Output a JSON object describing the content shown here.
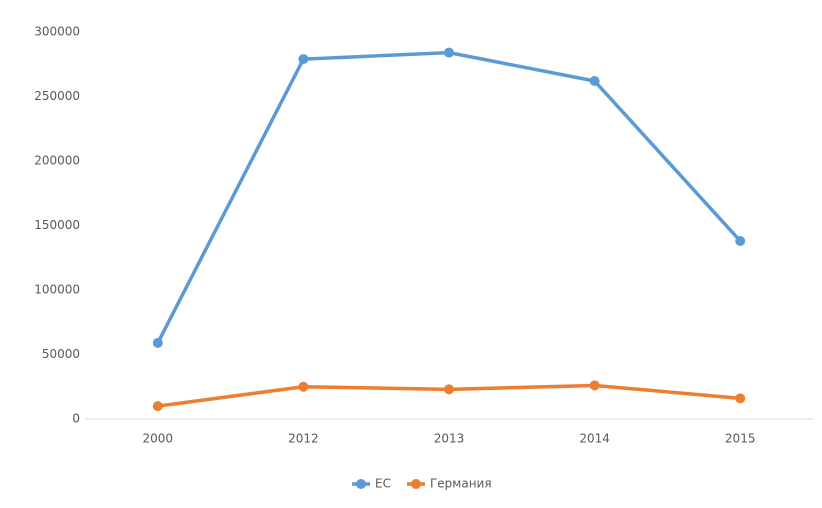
{
  "chart_data": {
    "type": "line",
    "categories": [
      "2000",
      "2012",
      "2013",
      "2014",
      "2015"
    ],
    "series": [
      {
        "name": "ЕС",
        "color": "#5b9bd5",
        "values": [
          59000,
          279000,
          284000,
          262000,
          138000
        ]
      },
      {
        "name": "Германия",
        "color": "#ed7d31",
        "values": [
          10000,
          25000,
          23000,
          26000,
          16000
        ]
      }
    ],
    "ylim": [
      0,
      300000
    ],
    "yticks": [
      0,
      50000,
      100000,
      150000,
      200000,
      250000,
      300000
    ],
    "grid": false,
    "legend": "bottom"
  }
}
